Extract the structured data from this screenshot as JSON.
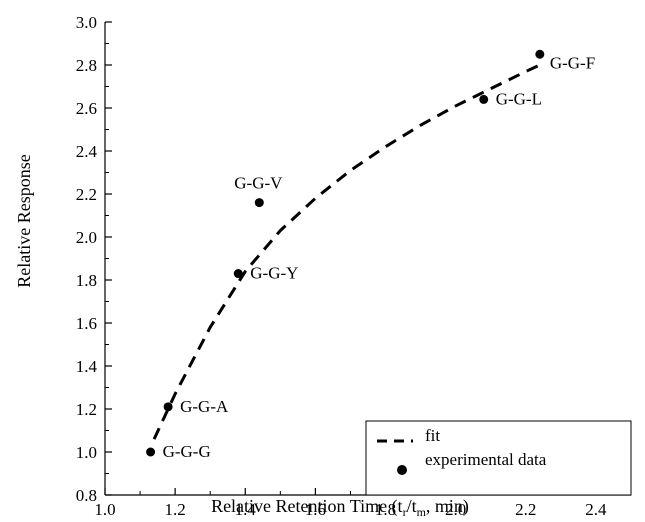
{
  "chart_data": {
    "type": "scatter",
    "xlabel": "Relative Retention Time (t",
    "xlabel_sub_r": "r",
    "xlabel_mid": "/t",
    "xlabel_sub_m": "m",
    "xlabel_end": ", min)",
    "ylabel": "Relative Response",
    "xlim": [
      1.0,
      2.5
    ],
    "ylim": [
      0.8,
      3.0
    ],
    "xticks": [
      "1.0",
      "1.2",
      "1.4",
      "1.6",
      "1.8",
      "2.0",
      "2.2",
      "2.4"
    ],
    "yticks": [
      "0.8",
      "1.0",
      "1.2",
      "1.4",
      "1.6",
      "1.8",
      "2.0",
      "2.2",
      "2.4",
      "2.6",
      "2.8",
      "3.0"
    ],
    "grid": false,
    "legend_position": "bottom-right",
    "series": [
      {
        "name": "experimental data",
        "marker": "circle",
        "points": [
          {
            "label": "G-G-G",
            "x": 1.13,
            "y": 1.0
          },
          {
            "label": "G-G-A",
            "x": 1.18,
            "y": 1.21
          },
          {
            "label": "G-G-Y",
            "x": 1.38,
            "y": 1.83
          },
          {
            "label": "G-G-V",
            "x": 1.44,
            "y": 2.16
          },
          {
            "label": "G-G-L",
            "x": 2.08,
            "y": 2.64
          },
          {
            "label": "G-G-F",
            "x": 2.24,
            "y": 2.85
          }
        ]
      },
      {
        "name": "fit",
        "style": "dashed",
        "x": [
          1.14,
          1.2,
          1.3,
          1.4,
          1.5,
          1.6,
          1.7,
          1.8,
          1.9,
          2.0,
          2.1,
          2.2,
          2.24
        ],
        "y": [
          1.06,
          1.27,
          1.58,
          1.84,
          2.03,
          2.18,
          2.31,
          2.42,
          2.52,
          2.61,
          2.69,
          2.77,
          2.8
        ]
      }
    ]
  }
}
